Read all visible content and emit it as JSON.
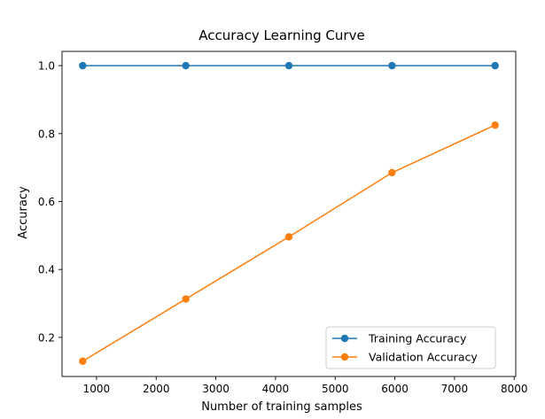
{
  "chart_data": {
    "type": "line",
    "title": "Accuracy Learning Curve",
    "xlabel": "Number of training samples",
    "ylabel": "Accuracy",
    "x": [
      768,
      2496,
      4224,
      5952,
      7680
    ],
    "xlim": [
      422,
      8026
    ],
    "ylim": [
      0.085,
      1.042
    ],
    "xticks": [
      1000,
      2000,
      3000,
      4000,
      5000,
      6000,
      7000,
      8000
    ],
    "yticks": [
      0.2,
      0.4,
      0.6,
      0.8,
      1.0
    ],
    "xtick_labels": [
      "1000",
      "2000",
      "3000",
      "4000",
      "5000",
      "6000",
      "7000",
      "8000"
    ],
    "ytick_labels": [
      "0.2",
      "0.4",
      "0.6",
      "0.8",
      "1.0"
    ],
    "grid": false,
    "legend_position": "lower-right",
    "series": [
      {
        "name": "Training Accuracy",
        "color": "#1f77b4",
        "marker": "circle",
        "values": [
          1.0,
          1.0,
          1.0,
          1.0,
          1.0
        ]
      },
      {
        "name": "Validation Accuracy",
        "color": "#ff7f0e",
        "marker": "circle",
        "values": [
          0.13,
          0.313,
          0.496,
          0.685,
          0.825
        ]
      }
    ]
  }
}
